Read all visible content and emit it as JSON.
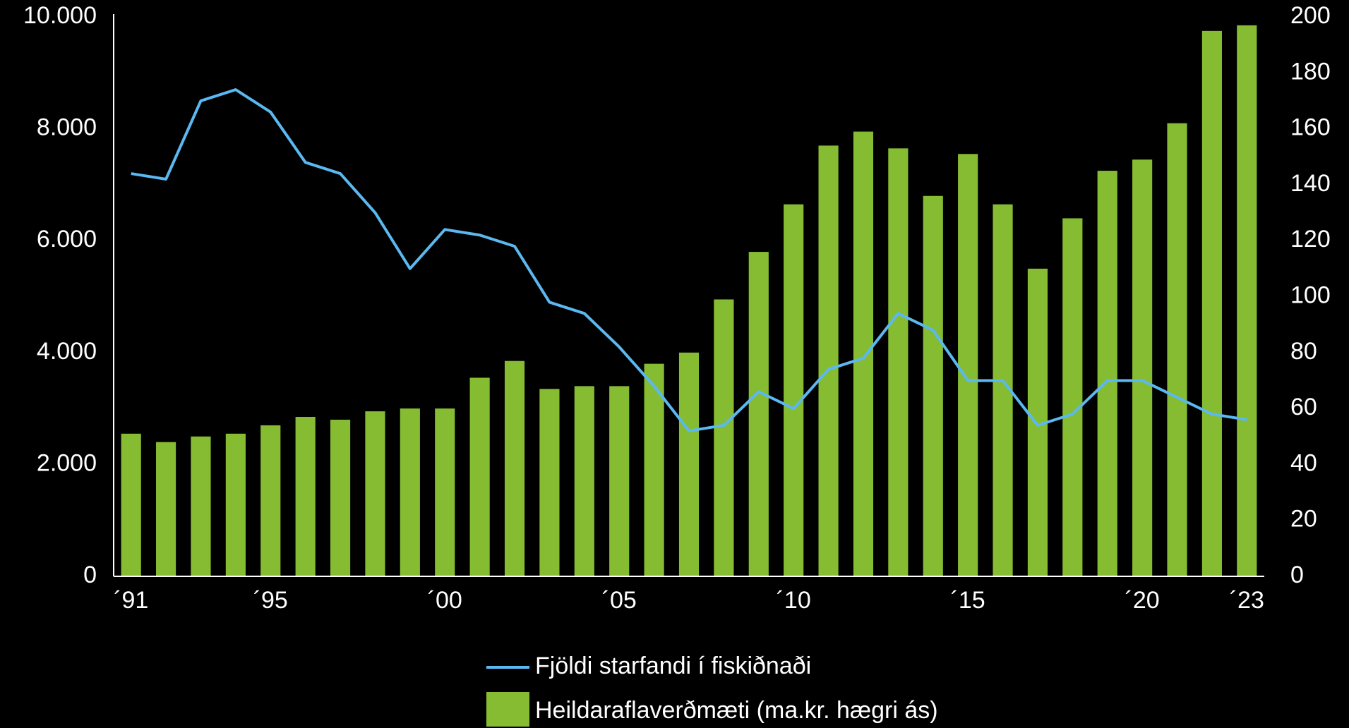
{
  "chart_data": {
    "type": "bar-line",
    "categories": [
      "´91",
      null,
      null,
      null,
      "´95",
      null,
      null,
      null,
      null,
      "´00",
      null,
      null,
      null,
      null,
      "´05",
      null,
      null,
      null,
      null,
      "´10",
      null,
      null,
      null,
      null,
      "´15",
      null,
      null,
      null,
      null,
      "´20",
      null,
      null,
      "´23"
    ],
    "series": [
      {
        "name": "Fjöldi starfandi í fiskiðnaði",
        "type": "line",
        "axis": "y",
        "color": "#5bb8f0",
        "values": [
          7200,
          7100,
          8500,
          8700,
          8300,
          7400,
          7200,
          6500,
          5500,
          6200,
          6100,
          5900,
          4900,
          4700,
          4100,
          3400,
          2600,
          2700,
          3300,
          3000,
          3700,
          3900,
          4700,
          4400,
          3500,
          3500,
          2700,
          2900,
          3500,
          3500,
          3200,
          2900,
          2800
        ]
      },
      {
        "name": "Heildaraflaverðmæti (ma.kr. hægri ás)",
        "type": "bar",
        "axis": "y2",
        "color": "#86bc32",
        "values": [
          51,
          48,
          50,
          51,
          54,
          57,
          56,
          59,
          60,
          60,
          71,
          77,
          67,
          68,
          68,
          76,
          80,
          99,
          116,
          133,
          154,
          159,
          153,
          136,
          151,
          133,
          110,
          128,
          145,
          149,
          162,
          195,
          197
        ]
      }
    ],
    "ylim": [
      0,
      10000
    ],
    "yticks": [
      0,
      {
        "value": 2000,
        "label": "2.000"
      },
      {
        "value": 4000,
        "label": "4.000"
      },
      {
        "value": 6000,
        "label": "6.000"
      },
      {
        "value": 8000,
        "label": "8.000"
      },
      {
        "value": 10000,
        "label": "10.000"
      }
    ],
    "y2lim": [
      0,
      200
    ],
    "y2ticks": [
      0,
      20,
      40,
      60,
      80,
      100,
      120,
      140,
      160,
      180,
      200
    ],
    "grid": false
  }
}
